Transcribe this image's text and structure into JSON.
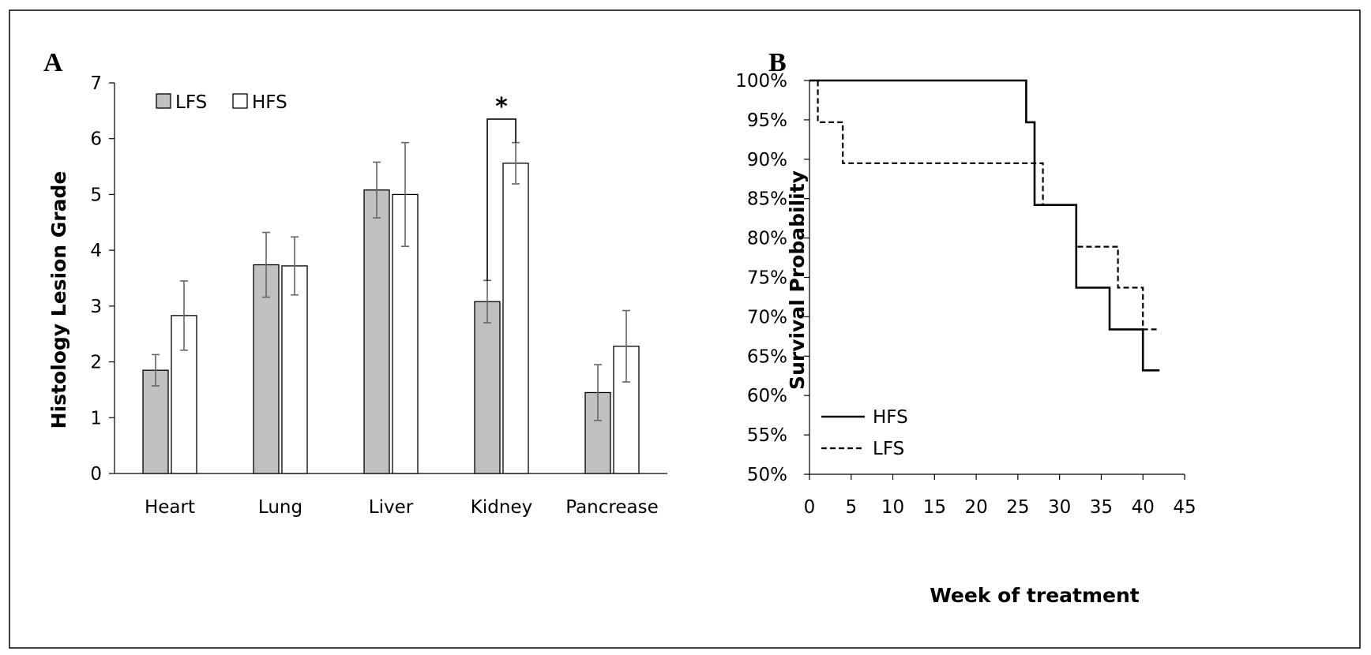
{
  "chart_data": [
    {
      "panel": "A",
      "type": "bar",
      "ylabel": "Histology Lesion Grade",
      "xlabel": "",
      "ylim": [
        0,
        7
      ],
      "yticks": [
        "0",
        "1",
        "2",
        "3",
        "4",
        "5",
        "6",
        "7"
      ],
      "categories": [
        "Heart",
        "Lung",
        "Liver",
        "Kidney",
        "Pancrease"
      ],
      "legend": {
        "placement": "top-left",
        "entries": [
          "LFS",
          "HFS"
        ]
      },
      "series": [
        {
          "name": "LFS",
          "fill": "#c0c0c0",
          "values": [
            1.85,
            3.74,
            5.08,
            3.08,
            1.45
          ],
          "error": [
            0.28,
            0.58,
            0.5,
            0.38,
            0.5
          ]
        },
        {
          "name": "HFS",
          "fill": "#ffffff",
          "values": [
            2.83,
            3.72,
            5.0,
            5.56,
            2.28
          ],
          "error": [
            0.62,
            0.52,
            0.93,
            0.37,
            0.64
          ]
        }
      ],
      "annotations": [
        {
          "text": "*",
          "category": "Kidney",
          "bracket_from": 3.45,
          "bracket_to": 5.93,
          "bracket_top": 6.35
        }
      ],
      "grid": false
    },
    {
      "panel": "B",
      "type": "line",
      "xlabel": "Week of treatment",
      "ylabel": "Survival Probability",
      "xlim": [
        0,
        45
      ],
      "ylim": [
        50,
        100
      ],
      "xticks": [
        "0",
        "5",
        "10",
        "15",
        "20",
        "25",
        "30",
        "35",
        "40",
        "45"
      ],
      "yticks": [
        "50%",
        "55%",
        "60%",
        "65%",
        "70%",
        "75%",
        "80%",
        "85%",
        "90%",
        "95%",
        "100%"
      ],
      "legend": {
        "placement": "bottom-left",
        "entries": [
          "HFS",
          "LFS"
        ]
      },
      "series": [
        {
          "name": "HFS",
          "style": "solid",
          "step": true,
          "points": [
            [
              0,
              100
            ],
            [
              26,
              100
            ],
            [
              26,
              94.7
            ],
            [
              27,
              94.7
            ],
            [
              27,
              84.2
            ],
            [
              32,
              84.2
            ],
            [
              32,
              73.7
            ],
            [
              36,
              73.7
            ],
            [
              36,
              68.4
            ],
            [
              40,
              68.4
            ],
            [
              40,
              63.2
            ],
            [
              42,
              63.2
            ]
          ]
        },
        {
          "name": "LFS",
          "style": "dashed",
          "step": true,
          "points": [
            [
              0,
              100
            ],
            [
              1,
              100
            ],
            [
              1,
              94.7
            ],
            [
              4,
              94.7
            ],
            [
              4,
              89.5
            ],
            [
              28,
              89.5
            ],
            [
              28,
              84.2
            ],
            [
              32,
              84.2
            ],
            [
              32,
              78.9
            ],
            [
              37,
              78.9
            ],
            [
              37,
              73.7
            ],
            [
              40,
              73.7
            ],
            [
              40,
              68.4
            ],
            [
              42,
              68.4
            ]
          ]
        }
      ],
      "grid": false
    }
  ]
}
